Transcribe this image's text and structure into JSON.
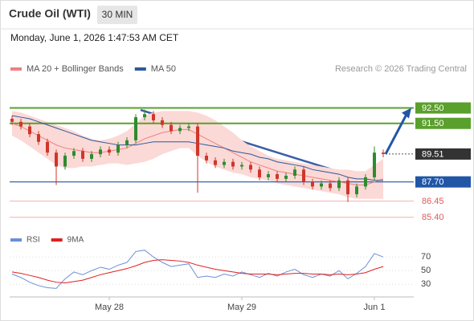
{
  "header": {
    "title": "Crude Oil (WTI)",
    "timeframe": "30 MIN",
    "datetime": "Monday, June 1, 2026 1:47:53 AM CET"
  },
  "chart_data": [
    {
      "type": "candlestick",
      "attribution": "Research © 2026 Trading Central",
      "categories": [
        null,
        null,
        null,
        null,
        null,
        null,
        null,
        null,
        null,
        null,
        null,
        "May 28",
        null,
        null,
        null,
        null,
        null,
        null,
        null,
        null,
        null,
        null,
        null,
        null,
        null,
        null,
        "May 29",
        null,
        null,
        null,
        null,
        null,
        null,
        null,
        null,
        null,
        null,
        null,
        null,
        null,
        null,
        "Jun 1",
        null
      ],
      "open": [
        91.8,
        91.6,
        91.3,
        90.8,
        90.3,
        89.6,
        88.7,
        89.4,
        89.7,
        89.2,
        89.5,
        89.8,
        89.6,
        90.1,
        90.4,
        91.9,
        92.1,
        91.7,
        91.4,
        91.0,
        91.2,
        91.3,
        89.4,
        89.1,
        88.8,
        89.0,
        88.7,
        88.8,
        88.5,
        88.0,
        88.2,
        87.9,
        88.1,
        88.5,
        87.7,
        87.4,
        87.6,
        87.3,
        87.8,
        86.9,
        87.4,
        88.0,
        89.6
      ],
      "high": [
        92.0,
        91.8,
        91.5,
        91.0,
        90.5,
        89.8,
        89.6,
        89.9,
        89.9,
        89.7,
        90.0,
        90.0,
        90.3,
        90.6,
        92.1,
        92.4,
        92.3,
        91.9,
        91.6,
        91.4,
        91.5,
        91.5,
        89.6,
        89.3,
        89.2,
        89.2,
        89.0,
        89.0,
        88.7,
        88.4,
        88.4,
        88.3,
        88.7,
        88.7,
        87.9,
        87.8,
        87.8,
        88.0,
        88.0,
        87.6,
        88.2,
        90.0,
        89.8
      ],
      "low": [
        91.4,
        91.1,
        90.6,
        90.1,
        89.4,
        87.5,
        88.5,
        89.2,
        89.0,
        89.0,
        89.3,
        89.4,
        89.4,
        89.9,
        90.2,
        91.7,
        91.5,
        91.2,
        90.8,
        90.8,
        91.0,
        87.0,
        88.9,
        88.6,
        88.6,
        88.5,
        88.5,
        88.3,
        87.8,
        87.8,
        87.7,
        87.7,
        87.9,
        87.5,
        87.2,
        87.2,
        87.1,
        87.1,
        86.4,
        86.7,
        87.2,
        87.8,
        89.3
      ],
      "close": [
        91.6,
        91.3,
        90.8,
        90.3,
        89.6,
        88.7,
        89.4,
        89.7,
        89.2,
        89.5,
        89.8,
        89.6,
        90.1,
        90.4,
        91.9,
        92.1,
        91.7,
        91.4,
        91.0,
        91.2,
        91.3,
        89.4,
        89.1,
        88.8,
        89.0,
        88.7,
        88.8,
        88.5,
        88.0,
        88.2,
        87.9,
        88.1,
        88.5,
        87.7,
        87.4,
        87.6,
        87.3,
        87.8,
        86.9,
        87.4,
        88.0,
        89.6,
        89.51
      ],
      "up_color": "#2e8b2e",
      "down_color": "#d0362a",
      "series": [
        {
          "name": "MA 20 + Bollinger Bands",
          "color": "#f08080",
          "band_color": "#fbd9d6",
          "values": [
            91.5,
            91.3,
            91.0,
            90.7,
            90.4,
            90.1,
            89.9,
            89.8,
            89.7,
            89.6,
            89.6,
            89.7,
            89.8,
            89.9,
            90.2,
            90.5,
            90.7,
            90.9,
            91.0,
            91.1,
            91.1,
            90.8,
            90.5,
            90.2,
            89.9,
            89.6,
            89.3,
            89.0,
            88.8,
            88.6,
            88.4,
            88.3,
            88.2,
            88.1,
            88.0,
            87.9,
            87.8,
            87.7,
            87.6,
            87.5,
            87.5,
            87.7,
            87.9
          ],
          "upper": [
            92.3,
            92.2,
            92.0,
            91.8,
            91.6,
            91.4,
            91.2,
            91.0,
            90.7,
            90.5,
            90.4,
            90.5,
            90.7,
            91.0,
            91.5,
            92.0,
            92.2,
            92.3,
            92.3,
            92.3,
            92.3,
            92.2,
            92.0,
            91.7,
            91.3,
            90.9,
            90.4,
            90.0,
            89.7,
            89.4,
            89.2,
            89.1,
            89.0,
            88.9,
            88.8,
            88.7,
            88.6,
            88.5,
            88.5,
            88.4,
            88.4,
            88.8,
            89.2
          ],
          "lower": [
            90.7,
            90.4,
            90.0,
            89.6,
            89.2,
            88.8,
            88.6,
            88.6,
            88.7,
            88.7,
            88.8,
            88.9,
            88.9,
            88.8,
            88.9,
            89.0,
            89.2,
            89.5,
            89.7,
            89.9,
            89.9,
            89.4,
            89.0,
            88.7,
            88.5,
            88.3,
            88.2,
            88.0,
            87.9,
            87.8,
            87.6,
            87.5,
            87.4,
            87.3,
            87.2,
            87.1,
            87.0,
            86.9,
            86.7,
            86.6,
            86.6,
            86.6,
            86.6
          ]
        },
        {
          "name": "MA 50",
          "color": "#2a5a9c",
          "values": [
            92.0,
            91.9,
            91.8,
            91.6,
            91.4,
            91.2,
            91.0,
            90.8,
            90.6,
            90.4,
            90.3,
            90.2,
            90.1,
            90.1,
            90.1,
            90.2,
            90.3,
            90.3,
            90.3,
            90.3,
            90.3,
            90.2,
            90.1,
            90.0,
            89.9,
            89.7,
            89.6,
            89.5,
            89.3,
            89.2,
            89.0,
            88.9,
            88.8,
            88.7,
            88.5,
            88.4,
            88.3,
            88.2,
            88.0,
            87.9,
            87.9,
            87.8,
            87.8
          ]
        }
      ],
      "levels": [
        {
          "value": {
            "value": 92.5,
            "label": "92.50"
          },
          "color": "#5aa02c",
          "style": "box"
        },
        {
          "value": {
            "value": 91.5,
            "label": "91.50"
          },
          "color": "#5aa02c",
          "style": "box"
        },
        {
          "value": 89.51,
          "color": "#333333",
          "style": "current"
        },
        {
          "value": {
            "value": 87.7,
            "label": "87.70"
          },
          "color": "#2156a6",
          "style": "box"
        },
        {
          "value": 86.45,
          "color": "#e05a5a",
          "style": "text"
        },
        {
          "value": {
            "value": 85.4,
            "label": "85.40"
          },
          "color": "#e05a5a",
          "style": "text"
        }
      ],
      "ylim": [
        84.4,
        94.3
      ]
    },
    {
      "type": "line",
      "series": [
        {
          "name": "RSI",
          "color": "#6a8fd8",
          "values": [
            45,
            40,
            33,
            28,
            25,
            24,
            38,
            48,
            44,
            50,
            55,
            52,
            58,
            62,
            78,
            80,
            70,
            62,
            56,
            58,
            60,
            40,
            42,
            40,
            45,
            42,
            48,
            44,
            40,
            46,
            42,
            48,
            52,
            44,
            40,
            45,
            42,
            50,
            38,
            46,
            56,
            75,
            70
          ]
        },
        {
          "name": "9MA",
          "color": "#e02020",
          "values": [
            48,
            46,
            43,
            40,
            36,
            33,
            32,
            34,
            36,
            40,
            44,
            47,
            50,
            53,
            57,
            62,
            65,
            66,
            65,
            64,
            62,
            58,
            55,
            52,
            50,
            48,
            46,
            45,
            45,
            45,
            44,
            45,
            46,
            46,
            45,
            45,
            44,
            45,
            44,
            45,
            47,
            52,
            56
          ]
        }
      ],
      "ylim": [
        15,
        82
      ],
      "yticks": [
        70,
        50,
        30
      ],
      "grid": true
    }
  ]
}
